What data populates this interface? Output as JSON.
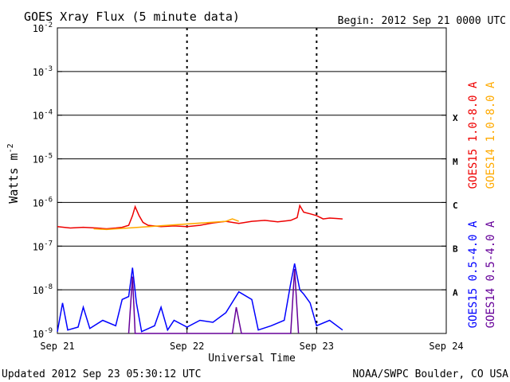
{
  "header": {
    "title": "GOES Xray Flux (5 minute data)",
    "begin": "Begin:  2012 Sep 21 0000 UTC"
  },
  "footer": {
    "updated": "Updated 2012 Sep 23 05:30:12 UTC",
    "credit": "NOAA/SWPC Boulder, CO USA"
  },
  "chart_data": {
    "type": "line",
    "title": "GOES Xray Flux (5 minute data)",
    "xlabel": "Universal Time",
    "ylabel": "Watts m",
    "ylabel_superscript": "-2",
    "y_scale": "log",
    "ylim": [
      1e-09,
      0.01
    ],
    "xlim": [
      "2012-09-21 00:00",
      "2012-09-24 00:00"
    ],
    "x_ticks": [
      "Sep 21",
      "Sep 22",
      "Sep 23",
      "Sep 24"
    ],
    "y_ticks": [
      {
        "mant": "10",
        "exp": "-2"
      },
      {
        "mant": "10",
        "exp": "-3"
      },
      {
        "mant": "10",
        "exp": "-4"
      },
      {
        "mant": "10",
        "exp": "-5"
      },
      {
        "mant": "10",
        "exp": "-6"
      },
      {
        "mant": "10",
        "exp": "-7"
      },
      {
        "mant": "10",
        "exp": "-8"
      },
      {
        "mant": "10",
        "exp": "-9"
      }
    ],
    "flare_classes": [
      "X",
      "M",
      "C",
      "B",
      "A"
    ],
    "grid": true,
    "legend_position": "right, rotated vertically",
    "series": [
      {
        "name": "GOES15 1.0-8.0 A",
        "color": "#ee0000",
        "points": [
          [
            0,
            2.8e-07
          ],
          [
            0.05,
            2.7e-07
          ],
          [
            0.1,
            2.6e-07
          ],
          [
            0.2,
            2.7e-07
          ],
          [
            0.3,
            2.6e-07
          ],
          [
            0.38,
            2.5e-07
          ],
          [
            0.45,
            2.6e-07
          ],
          [
            0.5,
            2.7e-07
          ],
          [
            0.55,
            3e-07
          ],
          [
            0.58,
            5e-07
          ],
          [
            0.6,
            8e-07
          ],
          [
            0.63,
            5e-07
          ],
          [
            0.66,
            3.5e-07
          ],
          [
            0.7,
            3e-07
          ],
          [
            0.8,
            2.8e-07
          ],
          [
            0.9,
            2.9e-07
          ],
          [
            1.0,
            2.8e-07
          ],
          [
            1.1,
            3e-07
          ],
          [
            1.2,
            3.4e-07
          ],
          [
            1.3,
            3.7e-07
          ],
          [
            1.4,
            3.3e-07
          ],
          [
            1.5,
            3.7e-07
          ],
          [
            1.6,
            3.9e-07
          ],
          [
            1.7,
            3.6e-07
          ],
          [
            1.8,
            3.9e-07
          ],
          [
            1.85,
            4.5e-07
          ],
          [
            1.87,
            8.5e-07
          ],
          [
            1.9,
            6e-07
          ],
          [
            1.95,
            5.5e-07
          ],
          [
            2.0,
            5e-07
          ],
          [
            2.05,
            4.2e-07
          ],
          [
            2.1,
            4.4e-07
          ],
          [
            2.15,
            4.3e-07
          ],
          [
            2.2,
            4.2e-07
          ]
        ]
      },
      {
        "name": "GOES14 1.0-8.0 A",
        "color": "#ffaa00",
        "points": [
          [
            0.28,
            2.5e-07
          ],
          [
            0.38,
            2.4e-07
          ],
          [
            1.3,
            3.7e-07
          ],
          [
            1.35,
            4.2e-07
          ],
          [
            1.4,
            3.7e-07
          ]
        ]
      },
      {
        "name": "GOES15 0.5-4.0 A",
        "color": "#0000ff",
        "points": [
          [
            0,
            1.1e-09
          ],
          [
            0.04,
            5e-09
          ],
          [
            0.08,
            1.2e-09
          ],
          [
            0.16,
            1.4e-09
          ],
          [
            0.2,
            4e-09
          ],
          [
            0.25,
            1.3e-09
          ],
          [
            0.35,
            2e-09
          ],
          [
            0.45,
            1.5e-09
          ],
          [
            0.5,
            6e-09
          ],
          [
            0.55,
            7e-09
          ],
          [
            0.58,
            3.2e-08
          ],
          [
            0.61,
            5e-09
          ],
          [
            0.65,
            1.1e-09
          ],
          [
            0.75,
            1.5e-09
          ],
          [
            0.8,
            4e-09
          ],
          [
            0.85,
            1.2e-09
          ],
          [
            0.9,
            2e-09
          ],
          [
            1.0,
            1.4e-09
          ],
          [
            1.1,
            2e-09
          ],
          [
            1.2,
            1.8e-09
          ],
          [
            1.3,
            3e-09
          ],
          [
            1.4,
            9e-09
          ],
          [
            1.5,
            6e-09
          ],
          [
            1.55,
            1.2e-09
          ],
          [
            1.65,
            1.5e-09
          ],
          [
            1.75,
            2e-09
          ],
          [
            1.8,
            1.4e-08
          ],
          [
            1.83,
            4e-08
          ],
          [
            1.87,
            1e-08
          ],
          [
            1.9,
            8e-09
          ],
          [
            1.95,
            5e-09
          ],
          [
            2.0,
            1.5e-09
          ],
          [
            2.1,
            2e-09
          ],
          [
            2.2,
            1.2e-09
          ]
        ]
      },
      {
        "name": "GOES14 0.5-4.0 A",
        "color": "#660099",
        "points": [
          [
            0.55,
            1e-09
          ],
          [
            0.58,
            2e-08
          ],
          [
            0.6,
            1e-09
          ],
          [
            1.35,
            1e-09
          ],
          [
            1.38,
            4e-09
          ],
          [
            1.42,
            1e-09
          ],
          [
            1.8,
            1e-09
          ],
          [
            1.83,
            3e-08
          ],
          [
            1.86,
            1e-09
          ]
        ]
      }
    ]
  }
}
